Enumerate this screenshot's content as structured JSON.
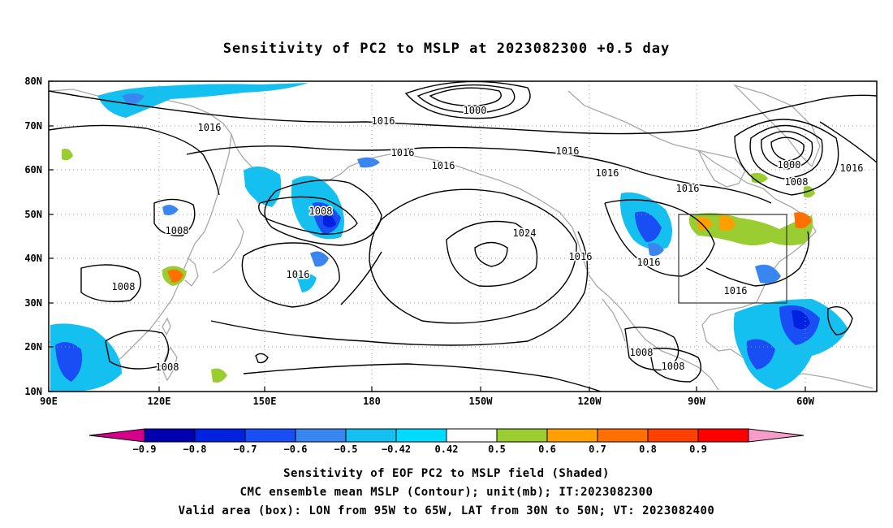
{
  "title": "Sensitivity of PC2 to MSLP at 2023082300 +0.5 day",
  "colors": {
    "land_outline": "#a8a8a8",
    "contour": "#000000",
    "grid": "#9a9a9a",
    "box": "#333333"
  },
  "axes": {
    "x_ticks": [
      "90E",
      "120E",
      "150E",
      "180",
      "150W",
      "120W",
      "90W",
      "60W"
    ],
    "y_ticks": [
      "80N",
      "70N",
      "60N",
      "50N",
      "40N",
      "30N",
      "20N",
      "10N"
    ],
    "lon_range": [
      90,
      315
    ],
    "lat_range": [
      10,
      80
    ]
  },
  "contour_labels": [
    "1000",
    "1016",
    "1016",
    "1016",
    "1016",
    "1016",
    "1016",
    "1000",
    "1008",
    "1016",
    "1008",
    "1008",
    "1024",
    "1016",
    "1016",
    "1016",
    "1016",
    "1008",
    "1008",
    "1008"
  ],
  "valid_box": {
    "lon": [
      265,
      295
    ],
    "lat": [
      30,
      50
    ]
  },
  "colorbar": {
    "labels": [
      "−0.9",
      "−0.8",
      "−0.7",
      "−0.6",
      "−0.5",
      "−0.42",
      "0.42",
      "0.5",
      "0.6",
      "0.7",
      "0.8",
      "0.9"
    ],
    "colors": [
      "#d4008a",
      "#0000b0",
      "#0022e0",
      "#1a4ef5",
      "#3a86f0",
      "#14c0f0",
      "#00dcff",
      "#ffffff",
      "#9acd32",
      "#ffa000",
      "#ff7000",
      "#ff4000",
      "#ff0000",
      "#f59cc8"
    ]
  },
  "captions": [
    "Sensitivity of EOF PC2 to MSLP field (Shaded)",
    "CMC ensemble mean MSLP (Contour); unit(mb); IT:2023082300",
    "Valid area (box): LON from 95W to 65W, LAT from 30N to 50N; VT: 2023082400"
  ]
}
